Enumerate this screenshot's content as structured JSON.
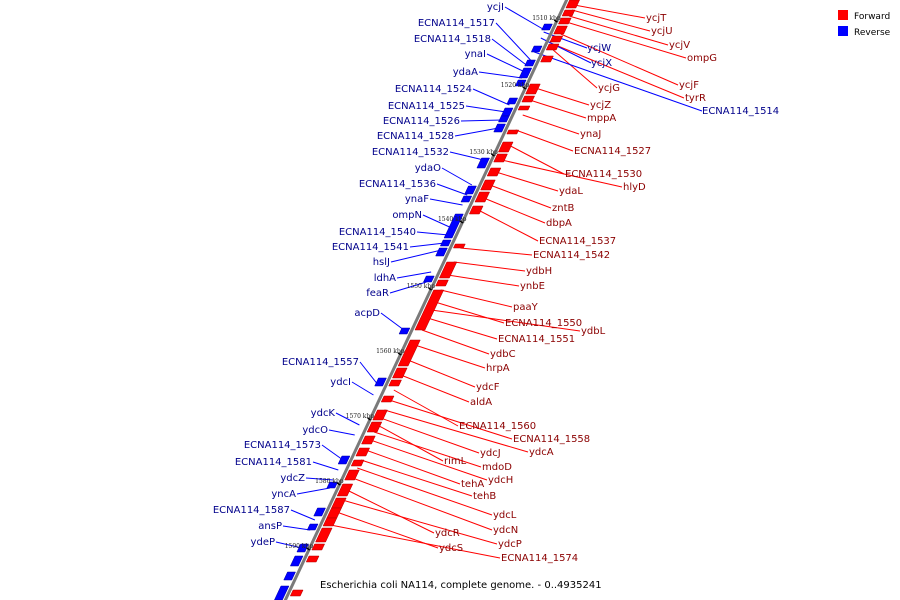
{
  "caption": "Escherichia coli NA114, complete genome. - 0..4935241",
  "legend": [
    {
      "label": "Forward",
      "color": "#ff0000"
    },
    {
      "label": "Reverse",
      "color": "#0000ff"
    }
  ],
  "colors": {
    "forward": "#ff0000",
    "reverse": "#0000ff",
    "backbone": "#808080"
  },
  "ticks": [
    "1510 kbp",
    "1520 kbp",
    "1530 kbp",
    "1540 kbp",
    "1550 kbp",
    "1560 kbp",
    "1570 kbp",
    "1580 kbp",
    "1590 kbp"
  ],
  "forward_labels": [
    "ycjT",
    "ycjU",
    "ycjV",
    "ompG",
    "ycjF",
    "tyrR",
    "ycjG",
    "ycjZ",
    "mppA",
    "ynaJ",
    "ECNA114_1527",
    "ECNA114_1530",
    "hlyD",
    "ydaL",
    "zntB",
    "dbpA",
    "ECNA114_1537",
    "ECNA114_1542",
    "ydbH",
    "ynbE",
    "paaY",
    "ECNA114_1550",
    "ydbL",
    "ECNA114_1551",
    "ydbC",
    "hrpA",
    "ydcF",
    "aldA",
    "ECNA114_1560",
    "ECNA114_1558",
    "ydcA",
    "ydcJ",
    "rimL",
    "mdoD",
    "ydcH",
    "tehA",
    "tehB",
    "ydcL",
    "ydcN",
    "ydcR",
    "ydcP",
    "ydcS",
    "ECNA114_1574"
  ],
  "reverse_labels": [
    "ycjI",
    "ycjW",
    "ycjX",
    "ECNA114_1514",
    "ECNA114_1517",
    "ECNA114_1518",
    "ynaI",
    "ydaA",
    "ECNA114_1524",
    "ECNA114_1525",
    "ECNA114_1526",
    "ECNA114_1528",
    "ECNA114_1532",
    "ydaO",
    "ECNA114_1536",
    "ynaF",
    "ompN",
    "ECNA114_1540",
    "ECNA114_1541",
    "hslJ",
    "ldhA",
    "feaR",
    "acpD",
    "ECNA114_1557",
    "ydcI",
    "ydcK",
    "ydcO",
    "ECNA114_1573",
    "ECNA114_1581",
    "ydcZ",
    "yncA",
    "ECNA114_1587",
    "ansP",
    "ydeP"
  ]
}
